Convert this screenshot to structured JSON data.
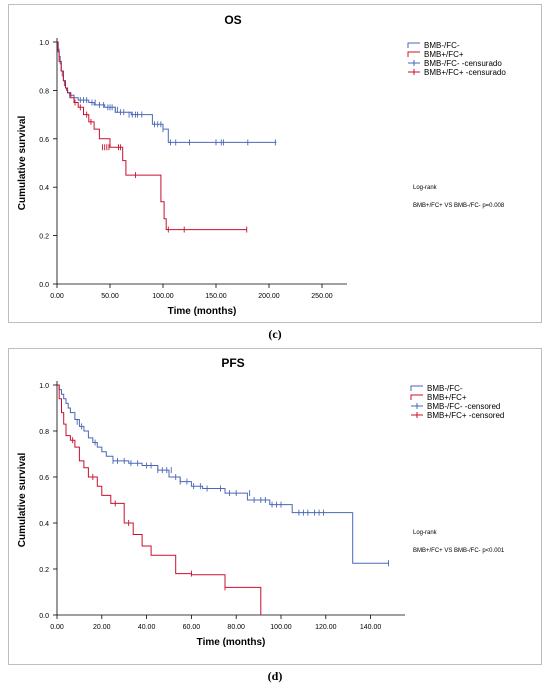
{
  "chart_data": [
    {
      "type": "line",
      "title": "OS",
      "xlabel": "Time (months)",
      "ylabel": "Cumulative survival",
      "xlim": [
        0,
        250
      ],
      "ylim": [
        0,
        1
      ],
      "xticks": [
        "0.00",
        "50.00",
        "100.00",
        "150.00",
        "200.00",
        "250.00"
      ],
      "yticks": [
        "0.0",
        "0.2",
        "0.4",
        "0.6",
        "0.8",
        "1.0"
      ],
      "grid": false,
      "legend": "top-right",
      "legend_entries": [
        "BMB-/FC-",
        "BMB+/FC+",
        "BMB-/FC- -censurado",
        "BMB+/FC+ -censurado"
      ],
      "annotation_title": "Log-rank",
      "annotation_text": "BMB+/FC+ VS BMB-/FC- p=0.008",
      "series": [
        {
          "name": "BMB-/FC-",
          "color": "#4a67b8",
          "x": [
            0,
            1,
            2,
            3,
            4,
            5,
            6,
            7,
            8,
            9,
            10,
            12,
            14,
            16,
            20,
            25,
            30,
            35,
            45,
            55,
            70,
            90,
            100,
            105,
            207
          ],
          "y": [
            1.0,
            0.97,
            0.94,
            0.91,
            0.88,
            0.86,
            0.84,
            0.82,
            0.81,
            0.8,
            0.79,
            0.78,
            0.78,
            0.77,
            0.76,
            0.76,
            0.75,
            0.74,
            0.73,
            0.71,
            0.7,
            0.66,
            0.64,
            0.585,
            0.585
          ],
          "censored_x": [
            12,
            16,
            22,
            25,
            28,
            33,
            36,
            40,
            44,
            48,
            50,
            52,
            55,
            57,
            60,
            63,
            68,
            71,
            74,
            76,
            80,
            92,
            95,
            98,
            100,
            107,
            112,
            125,
            150,
            155,
            157,
            180,
            206
          ],
          "censored_y": [
            0.78,
            0.77,
            0.76,
            0.76,
            0.76,
            0.75,
            0.75,
            0.74,
            0.74,
            0.73,
            0.73,
            0.73,
            0.72,
            0.72,
            0.71,
            0.71,
            0.7,
            0.7,
            0.7,
            0.7,
            0.7,
            0.66,
            0.66,
            0.66,
            0.64,
            0.585,
            0.585,
            0.585,
            0.585,
            0.585,
            0.585,
            0.585,
            0.585
          ]
        },
        {
          "name": "BMB+/FC+",
          "color": "#c8102e",
          "x": [
            0,
            1,
            2,
            4,
            6,
            8,
            10,
            13,
            16,
            20,
            25,
            30,
            35,
            40,
            50,
            62,
            65,
            98,
            101,
            103,
            179
          ],
          "y": [
            1.0,
            0.96,
            0.92,
            0.88,
            0.84,
            0.81,
            0.79,
            0.77,
            0.75,
            0.73,
            0.7,
            0.67,
            0.64,
            0.6,
            0.565,
            0.51,
            0.45,
            0.34,
            0.27,
            0.225,
            0.225
          ],
          "censored_x": [
            17,
            22,
            28,
            32,
            43,
            45,
            47,
            49,
            58,
            60,
            74,
            105,
            120,
            179
          ],
          "censored_y": [
            0.75,
            0.73,
            0.7,
            0.67,
            0.565,
            0.565,
            0.565,
            0.565,
            0.565,
            0.565,
            0.45,
            0.225,
            0.225,
            0.225
          ]
        }
      ]
    },
    {
      "type": "line",
      "title": "PFS",
      "xlabel": "Time (months)",
      "ylabel": "Cumulative survival",
      "xlim": [
        0,
        150
      ],
      "ylim": [
        0,
        1
      ],
      "xticks": [
        "0.00",
        "20.00",
        "40.00",
        "60.00",
        "80.00",
        "100.00",
        "120.00",
        "140.00"
      ],
      "yticks": [
        "0.0",
        "0.2",
        "0.4",
        "0.6",
        "0.8",
        "1.0"
      ],
      "grid": false,
      "legend": "top-right",
      "legend_entries": [
        "BMB-/FC-",
        "BMB+/FC+",
        "BMB-/FC- -censored",
        "BMB+/FC+ -censored"
      ],
      "annotation_title": "Log-rank",
      "annotation_text": "BMB+/FC+ VS BMB-/FC- p<0.001",
      "series": [
        {
          "name": "BMB-/FC-",
          "color": "#4a67b8",
          "x": [
            0,
            1,
            2,
            3,
            4,
            5,
            6,
            8,
            10,
            12,
            14,
            16,
            18,
            20,
            22,
            25,
            28,
            32,
            38,
            45,
            50,
            55,
            60,
            65,
            75,
            85,
            95,
            105,
            132,
            148
          ],
          "y": [
            1.0,
            0.98,
            0.96,
            0.94,
            0.92,
            0.9,
            0.88,
            0.85,
            0.82,
            0.8,
            0.77,
            0.75,
            0.73,
            0.71,
            0.69,
            0.67,
            0.67,
            0.66,
            0.65,
            0.63,
            0.6,
            0.58,
            0.56,
            0.55,
            0.53,
            0.5,
            0.48,
            0.445,
            0.225,
            0.225
          ],
          "censored_x": [
            9,
            11,
            17,
            25,
            27,
            30,
            33,
            36,
            40,
            42,
            45,
            47,
            49,
            51,
            53,
            55,
            58,
            61,
            64,
            67,
            73,
            77,
            80,
            86,
            88,
            91,
            93,
            96,
            98,
            100,
            108,
            110,
            112,
            115,
            117,
            119,
            148
          ],
          "censored_y": [
            0.84,
            0.82,
            0.75,
            0.67,
            0.67,
            0.67,
            0.66,
            0.66,
            0.65,
            0.65,
            0.63,
            0.63,
            0.63,
            0.63,
            0.6,
            0.58,
            0.58,
            0.56,
            0.56,
            0.55,
            0.55,
            0.53,
            0.53,
            0.53,
            0.5,
            0.5,
            0.5,
            0.48,
            0.48,
            0.48,
            0.445,
            0.445,
            0.445,
            0.445,
            0.445,
            0.445,
            0.225
          ]
        },
        {
          "name": "BMB+/FC+",
          "color": "#c8102e",
          "x": [
            0,
            1,
            2,
            3,
            4,
            6,
            8,
            10,
            12,
            14,
            18,
            20,
            24,
            30,
            34,
            38,
            42,
            53,
            60,
            75,
            91
          ],
          "y": [
            1.0,
            0.94,
            0.88,
            0.83,
            0.78,
            0.76,
            0.73,
            0.67,
            0.64,
            0.6,
            0.56,
            0.52,
            0.485,
            0.4,
            0.35,
            0.3,
            0.26,
            0.18,
            0.175,
            0.12,
            0.0
          ],
          "censored_x": [
            7,
            16,
            26,
            32,
            60,
            75
          ],
          "censored_y": [
            0.76,
            0.6,
            0.485,
            0.4,
            0.18,
            0.12
          ]
        }
      ]
    }
  ],
  "captions": {
    "c": "(c)",
    "d": "(d)"
  }
}
